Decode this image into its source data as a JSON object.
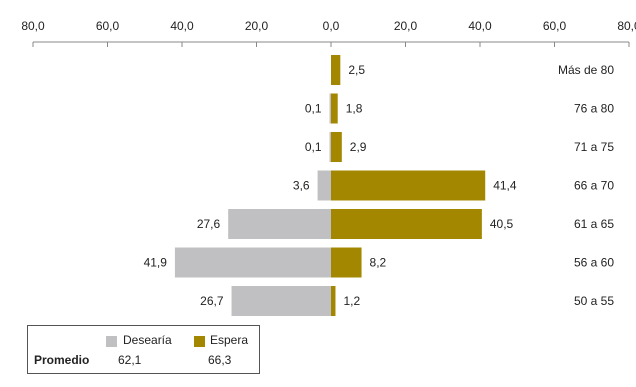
{
  "chart_data": {
    "type": "bar",
    "orientation": "horizontal",
    "layout": "diverging",
    "categories": [
      "Más de 80",
      "76 a 80",
      "71 a 75",
      "66 a 70",
      "61 a 65",
      "56 a 60",
      "50 a 55"
    ],
    "series": [
      {
        "name": "Desearía",
        "color": "#c0c0c2",
        "direction": "left",
        "values": [
          null,
          0.1,
          0.1,
          3.6,
          27.6,
          41.9,
          26.7
        ],
        "labels": [
          "",
          "0,1",
          "0,1",
          "3,6",
          "27,6",
          "41,9",
          "26,7"
        ]
      },
      {
        "name": "Espera",
        "color": "#a38700",
        "direction": "right",
        "values": [
          2.5,
          1.8,
          2.9,
          41.4,
          40.5,
          8.2,
          1.2
        ],
        "labels": [
          "2,5",
          "1,8",
          "2,9",
          "41,4",
          "40,5",
          "8,2",
          "1,2"
        ]
      }
    ],
    "xlim": [
      -80,
      80
    ],
    "x_ticks": [
      -80,
      -60,
      -40,
      -20,
      0,
      20,
      40,
      60,
      80
    ],
    "x_tick_labels": [
      "80,0",
      "60,0",
      "40,0",
      "20,0",
      "0,0",
      "20,0",
      "40,0",
      "60,0",
      "80,0"
    ],
    "xaxis_position": "top",
    "grid": false,
    "legend": {
      "placement": "bottom-left",
      "row_label": "Promedio",
      "entries": [
        {
          "name": "Desearía",
          "average": "62,1"
        },
        {
          "name": "Espera",
          "average": "66,3"
        }
      ]
    }
  }
}
